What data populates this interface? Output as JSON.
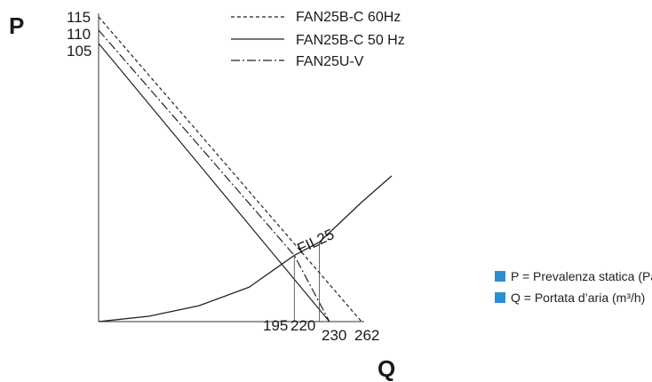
{
  "chart_data": {
    "type": "line",
    "title": "",
    "ylabel": "P",
    "xlabel": "Q",
    "y_ticks": [
      "115",
      "110",
      "105"
    ],
    "x_ticks": [
      "195",
      "220",
      "230",
      "262"
    ],
    "series": [
      {
        "name": "FAN25B-C 60Hz",
        "style": "dashed",
        "x": [
          0,
          262
        ],
        "y": [
          115,
          0
        ]
      },
      {
        "name": "FAN25B-C 50 Hz",
        "style": "solid",
        "x": [
          0,
          230
        ],
        "y": [
          105,
          0
        ]
      },
      {
        "name": "FAN25U-V",
        "style": "dash-dot",
        "x": [
          0,
          195,
          230
        ],
        "y": [
          110,
          25,
          0
        ]
      }
    ],
    "system_curve": {
      "name": "FIL25",
      "x": [
        0,
        50,
        100,
        150,
        195,
        220,
        262,
        292
      ],
      "y": [
        0,
        2,
        6,
        13,
        25,
        30,
        45,
        55
      ]
    },
    "operating_points": [
      {
        "label": "195",
        "x": 195,
        "y": 25
      },
      {
        "label": "220",
        "x": 220,
        "y": 30
      }
    ]
  },
  "notes": [
    {
      "text": "P = Prevalenza statica (Pa)",
      "color": "#2b8fd1"
    },
    {
      "text": "Q = Portata d’aria (m³/h)",
      "color": "#2b8fd1"
    }
  ]
}
